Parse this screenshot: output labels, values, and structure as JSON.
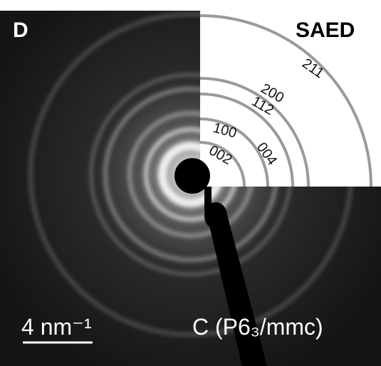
{
  "panel": {
    "label": "D",
    "title": "SAED",
    "rings": [
      "211",
      "200",
      "112",
      "100",
      "004",
      "002"
    ],
    "scale_bar": "4 nm⁻¹",
    "phase": "C (P6₃/mmc)"
  }
}
